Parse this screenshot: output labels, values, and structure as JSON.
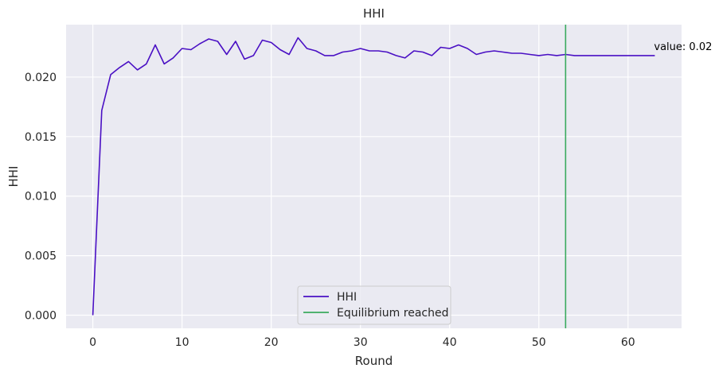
{
  "chart_data": {
    "type": "line",
    "title": "HHI",
    "xlabel": "Round",
    "ylabel": "HHI",
    "xlim": [
      -3,
      66
    ],
    "ylim": [
      -0.0011,
      0.0244
    ],
    "xticks": [
      0,
      10,
      20,
      30,
      40,
      50,
      60
    ],
    "yticks": [
      0.0,
      0.005,
      0.01,
      0.015,
      0.02
    ],
    "xtick_labels": [
      "0",
      "10",
      "20",
      "30",
      "40",
      "50",
      "60"
    ],
    "ytick_labels": [
      "0.000",
      "0.005",
      "0.010",
      "0.015",
      "0.020"
    ],
    "grid": true,
    "legend_position": "lower-center",
    "series": [
      {
        "name": "HHI",
        "color": "#4a10c4",
        "x": [
          0,
          1,
          2,
          3,
          4,
          5,
          6,
          7,
          8,
          9,
          10,
          11,
          12,
          13,
          14,
          15,
          16,
          17,
          18,
          19,
          20,
          21,
          22,
          23,
          24,
          25,
          26,
          27,
          28,
          29,
          30,
          31,
          32,
          33,
          34,
          35,
          36,
          37,
          38,
          39,
          40,
          41,
          42,
          43,
          44,
          45,
          46,
          47,
          48,
          49,
          50,
          51,
          52,
          53,
          54,
          55,
          56,
          57,
          58,
          59,
          60,
          61,
          62,
          63
        ],
        "values": [
          0.0,
          0.0172,
          0.0202,
          0.0208,
          0.0213,
          0.0206,
          0.0211,
          0.0227,
          0.0211,
          0.0216,
          0.0224,
          0.0223,
          0.0228,
          0.0232,
          0.023,
          0.0219,
          0.023,
          0.0215,
          0.0218,
          0.0231,
          0.0229,
          0.0223,
          0.0219,
          0.0233,
          0.0224,
          0.0222,
          0.0218,
          0.0218,
          0.0221,
          0.0222,
          0.0224,
          0.0222,
          0.0222,
          0.0221,
          0.0218,
          0.0216,
          0.0222,
          0.0221,
          0.0218,
          0.0225,
          0.0224,
          0.0227,
          0.0224,
          0.0219,
          0.0221,
          0.0222,
          0.0221,
          0.022,
          0.022,
          0.0219,
          0.0218,
          0.0219,
          0.0218,
          0.0219,
          0.0218,
          0.0218,
          0.0218,
          0.0218,
          0.0218,
          0.0218,
          0.0218,
          0.0218,
          0.0218,
          0.0218
        ]
      },
      {
        "name": "Equilibrium reached",
        "color": "#3aaa5e",
        "type": "vline",
        "x": 53
      }
    ],
    "annotations": [
      {
        "text": "value: 0.02",
        "x": 63,
        "y": 0.0218
      }
    ]
  },
  "colors": {
    "plot_background": "#eaeaf2",
    "grid": "#ffffff",
    "hhi_line": "#4a10c4",
    "equilibrium_line": "#3aaa5e"
  }
}
